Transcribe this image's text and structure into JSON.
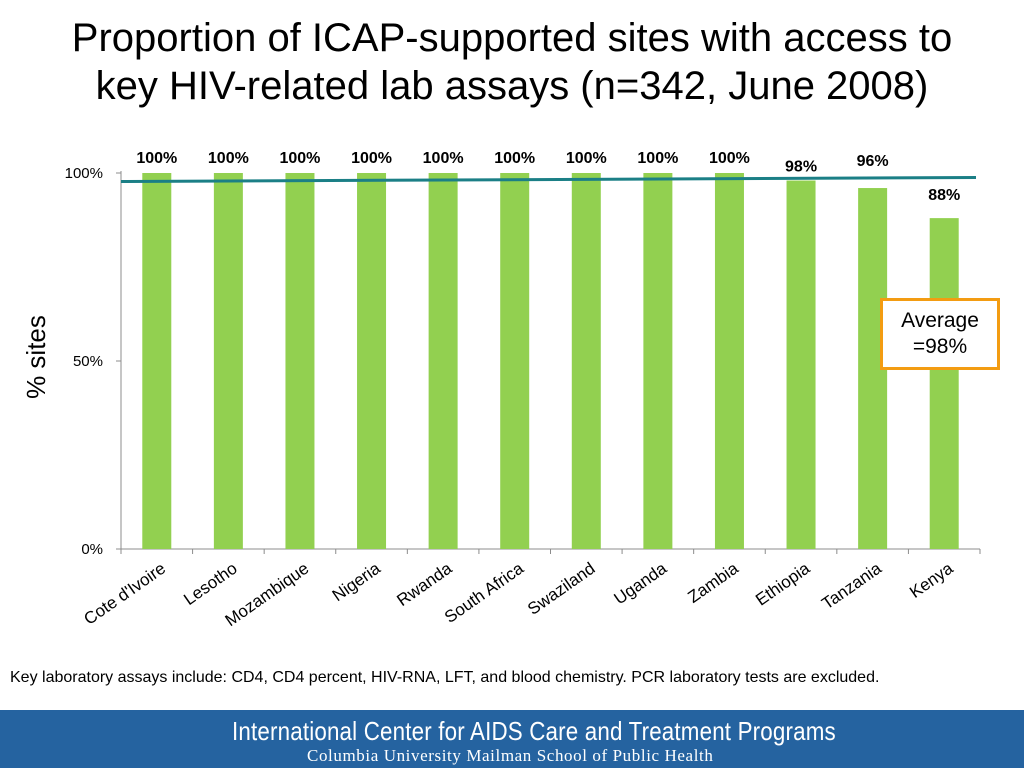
{
  "title_line1": "Proportion of ICAP-supported sites with access to",
  "title_line2": "key HIV-related lab assays (n=342, June 2008)",
  "callout": {
    "line1": "Average",
    "line2": "=98%"
  },
  "footnote": "Key laboratory assays include: CD4, CD4 percent, HIV-RNA, LFT, and blood chemistry. PCR laboratory tests are excluded.",
  "footer": {
    "org": "International Center for AIDS Care and Treatment Programs",
    "school": "Columbia University Mailman School of Public Health"
  },
  "colors": {
    "bar": "#92d050",
    "average_line": "#1b7f86",
    "callout_border": "#f39c12",
    "footer_bg": "#2563a0"
  },
  "chart_data": {
    "type": "bar",
    "categories": [
      "Cote d'Ivoire",
      "Lesotho",
      "Mozambique",
      "Nigeria",
      "Rwanda",
      "South Africa",
      "Swaziland",
      "Uganda",
      "Zambia",
      "Ethiopia",
      "Tanzania",
      "Kenya"
    ],
    "values": [
      100,
      100,
      100,
      100,
      100,
      100,
      100,
      100,
      100,
      98,
      96,
      88
    ],
    "value_labels": [
      "100%",
      "100%",
      "100%",
      "100%",
      "100%",
      "100%",
      "100%",
      "100%",
      "100%",
      "98%",
      "96%",
      "88%"
    ],
    "average": 98,
    "ylabel": "% sites",
    "ylim": [
      0,
      100
    ],
    "yticks": [
      0,
      50,
      100
    ],
    "ytick_labels": [
      "0%",
      "50%",
      "100%"
    ],
    "grid": false,
    "legend": "none"
  }
}
